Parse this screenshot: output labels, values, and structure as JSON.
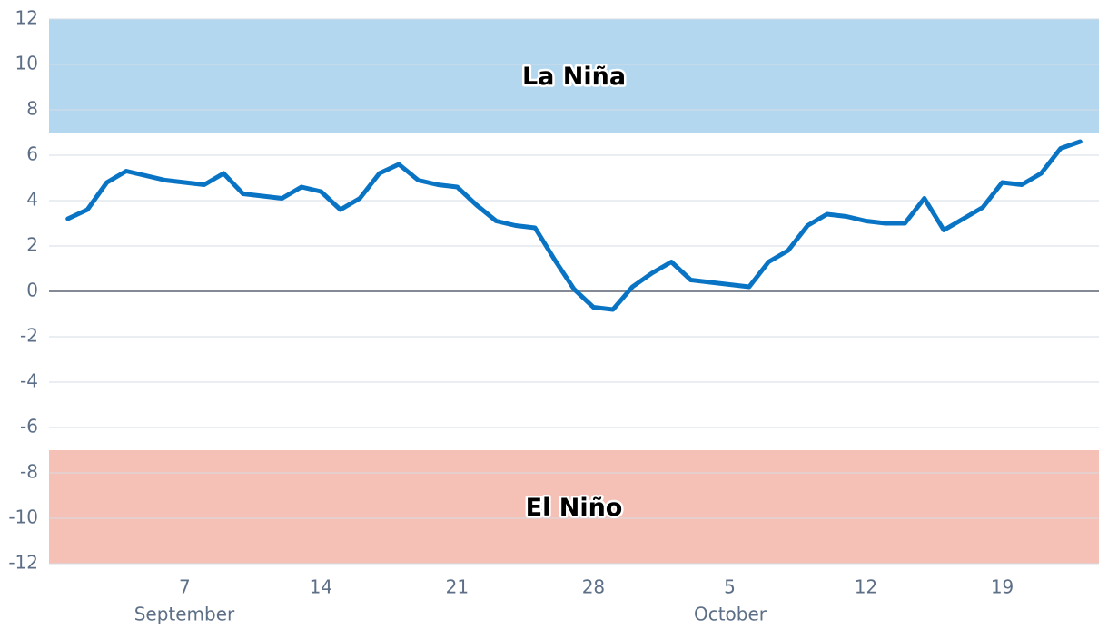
{
  "chart_data": {
    "type": "line",
    "categories": [
      null,
      null,
      null,
      null,
      null,
      null,
      "7",
      null,
      null,
      null,
      null,
      null,
      null,
      "14",
      null,
      null,
      null,
      null,
      null,
      null,
      "21",
      null,
      null,
      null,
      null,
      null,
      null,
      "28",
      null,
      null,
      null,
      null,
      null,
      null,
      "5",
      null,
      null,
      null,
      null,
      null,
      null,
      "12",
      null,
      null,
      null,
      null,
      null,
      null,
      "19",
      null,
      null,
      null,
      null
    ],
    "x_groups": [
      "September",
      "October"
    ],
    "series": [
      {
        "color": "#0a74c4",
        "values": [
          3.2,
          3.6,
          4.8,
          5.3,
          5.1,
          4.9,
          4.8,
          4.7,
          5.2,
          4.3,
          4.2,
          4.1,
          4.6,
          4.4,
          3.6,
          4.1,
          5.2,
          5.6,
          4.9,
          4.7,
          4.6,
          3.8,
          3.1,
          2.9,
          2.8,
          1.4,
          0.1,
          -0.7,
          -0.8,
          0.2,
          0.8,
          1.3,
          0.5,
          0.4,
          0.3,
          0.2,
          1.3,
          1.8,
          2.9,
          3.4,
          3.3,
          3.1,
          3.0,
          3.0,
          4.1,
          2.7,
          3.2,
          3.7,
          4.8,
          4.7,
          5.2,
          6.3,
          6.6
        ]
      }
    ],
    "bands": [
      {
        "label": "La Niña",
        "range": [
          7,
          12
        ],
        "color": "#b3d7ef"
      },
      {
        "label": "El Niño",
        "range": [
          -12,
          -7
        ],
        "color": "#f5c0b5"
      }
    ],
    "ylim": [
      -12,
      12
    ],
    "yticks": [
      12,
      10,
      8,
      6,
      4,
      2,
      0,
      -2,
      -4,
      -6,
      -8,
      -10,
      -12
    ],
    "grid": true
  }
}
